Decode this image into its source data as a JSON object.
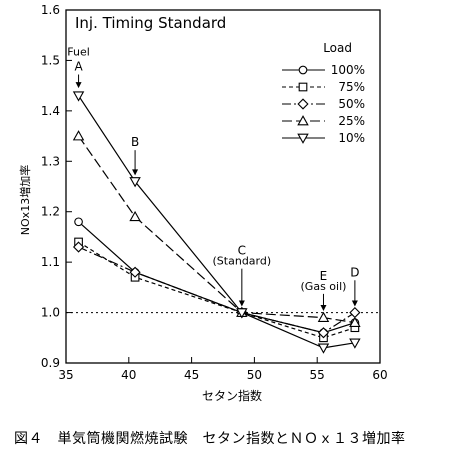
{
  "chart_data": {
    "type": "line",
    "title": "Inj. Timing Standard",
    "xlabel": "セタン指数",
    "ylabel": "NOx13増加率",
    "xlim": [
      35,
      60
    ],
    "ylim": [
      0.9,
      1.6
    ],
    "xticks": [
      35,
      40,
      45,
      50,
      55,
      60
    ],
    "yticks": [
      0.9,
      1.0,
      1.1,
      1.2,
      1.3,
      1.4,
      1.5,
      1.6
    ],
    "x": [
      36,
      40.5,
      49,
      55.5,
      58
    ],
    "legend_title": "Load",
    "legend_position": "top-right",
    "grid": false,
    "reference_line": 1.0,
    "series": [
      {
        "name": "100%",
        "marker": "circle",
        "dash": "",
        "values": [
          1.18,
          1.08,
          1.0,
          0.96,
          0.98
        ]
      },
      {
        "name": "75%",
        "marker": "square",
        "dash": "4,3",
        "values": [
          1.14,
          1.07,
          1.0,
          0.95,
          0.97
        ]
      },
      {
        "name": "50%",
        "marker": "diamond",
        "dash": "9,3,2,3",
        "values": [
          1.13,
          1.08,
          1.0,
          0.96,
          1.0
        ]
      },
      {
        "name": "25%",
        "marker": "triangle-up",
        "dash": "10,4",
        "values": [
          1.35,
          1.19,
          1.0,
          0.99,
          0.98
        ]
      },
      {
        "name": "10%",
        "marker": "triangle-down",
        "dash": "",
        "values": [
          1.43,
          1.26,
          1.0,
          0.93,
          0.94
        ]
      }
    ],
    "annotations": [
      {
        "text": "Fuel",
        "x": 36,
        "y": 1.51
      },
      {
        "text": "A",
        "x": 36,
        "y": 1.48,
        "arrow_to": 1.445
      },
      {
        "text": "B",
        "x": 40.5,
        "y": 1.33,
        "arrow_to": 1.272
      },
      {
        "text": "C",
        "x": 49,
        "y": 1.115
      },
      {
        "text": "(Standard)",
        "x": 49,
        "y": 1.095,
        "arrow_to": 1.012
      },
      {
        "text": "E",
        "x": 55.5,
        "y": 1.065
      },
      {
        "text": "(Gas oil)",
        "x": 55.5,
        "y": 1.045,
        "arrow_to": 1.003
      },
      {
        "text": "D",
        "x": 58,
        "y": 1.072,
        "arrow_to": 1.012
      }
    ]
  },
  "caption": "図４　単気筒機関燃焼試験　セタン指数とＮＯｘ１３増加率"
}
